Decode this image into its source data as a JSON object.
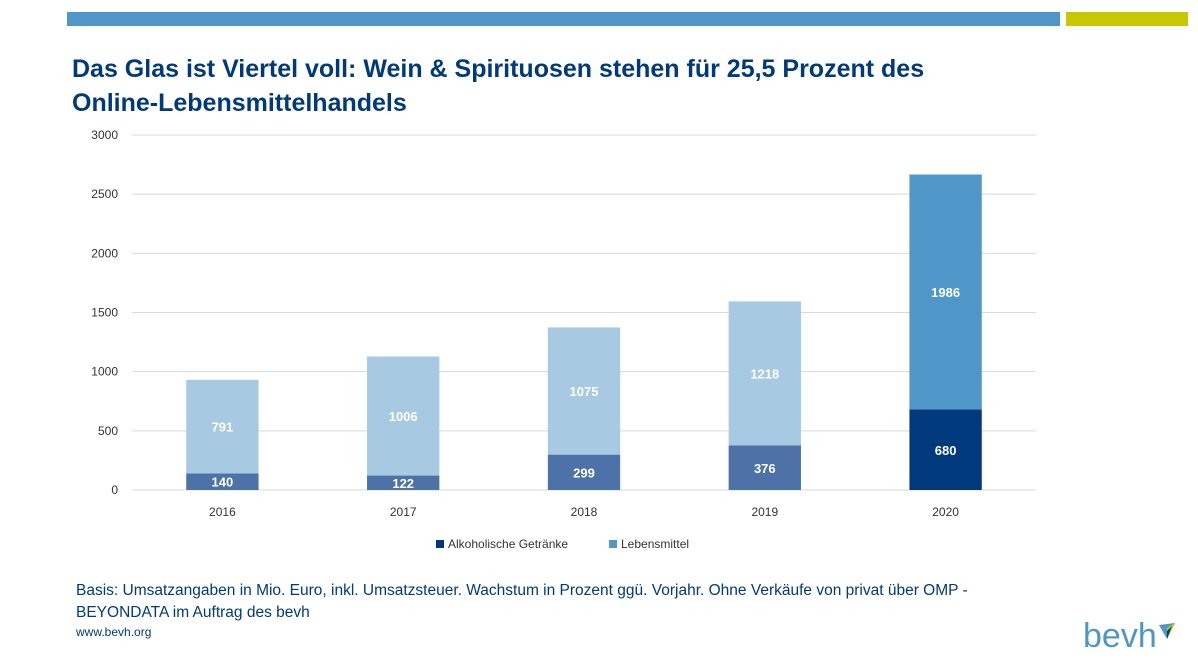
{
  "colors": {
    "top_bar_blue": "#4f97c8",
    "top_bar_lime": "#c8c800",
    "title_text": "#003a7d",
    "alkohol_dark": "#003a7d",
    "alkohol_mid": "#4d72a8",
    "lebensmittel_light": "#a7c9e1",
    "lebensmittel_mid": "#4f97c8",
    "grid": "#d9d9d9",
    "axis_text": "#333333"
  },
  "title_lines": [
    "Das Glas ist Viertel voll: Wein & Spirituosen stehen für 25,5 Prozent des",
    "Online-Lebensmittelhandels"
  ],
  "chart_data": {
    "type": "bar",
    "stacked": true,
    "categories": [
      "2016",
      "2017",
      "2018",
      "2019",
      "2020"
    ],
    "series": [
      {
        "name": "Alkoholische Getränke",
        "values": [
          140,
          122,
          299,
          376,
          680
        ]
      },
      {
        "name": "Lebensmittel",
        "values": [
          791,
          1006,
          1075,
          1218,
          1986
        ]
      }
    ],
    "yticks": [
      "0",
      "500",
      "1000",
      "1500",
      "2000",
      "2500",
      "3000"
    ],
    "ylim": [
      0,
      3000
    ],
    "grid": true,
    "legend_position": "bottom"
  },
  "footnote_lines": [
    "Basis: Umsatzangaben in Mio. Euro,  inkl. Umsatzsteuer. Wachstum in Prozent ggü. Vorjahr. Ohne Verkäufe von privat über OMP -",
    "BEYONDATA im Auftrag des bevh"
  ],
  "website": "www.bevh.org",
  "logo_text": "bevh"
}
